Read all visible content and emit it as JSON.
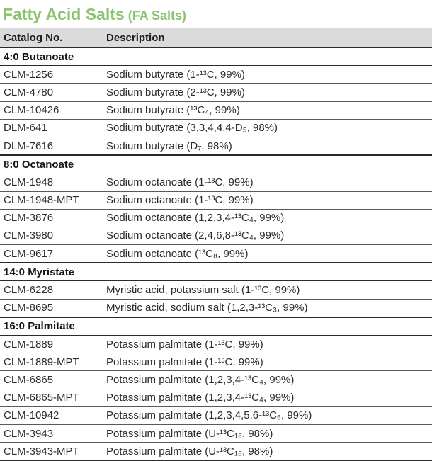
{
  "page": {
    "title": "Fatty Acid Salts",
    "subtitle": "(FA Salts)",
    "accent_color": "#8CC470",
    "header_bg": "#DBDBDB"
  },
  "table": {
    "headers": [
      "Catalog No.",
      "Description"
    ],
    "sections": [
      {
        "name": "4:0 Butanoate",
        "rows": [
          {
            "catalog": "CLM-1256",
            "description": "Sodium butyrate (1-¹³C, 99%)"
          },
          {
            "catalog": "CLM-4780",
            "description": "Sodium butyrate (2-¹³C, 99%)"
          },
          {
            "catalog": "CLM-10426",
            "description": "Sodium butyrate (¹³C₄, 99%)"
          },
          {
            "catalog": "DLM-641",
            "description": "Sodium butyrate (3,3,4,4,4-D₅, 98%)"
          },
          {
            "catalog": "DLM-7616",
            "description": "Sodium butyrate (D₇, 98%)"
          }
        ]
      },
      {
        "name": "8:0 Octanoate",
        "rows": [
          {
            "catalog": "CLM-1948",
            "description": "Sodium octanoate (1-¹³C, 99%)"
          },
          {
            "catalog": "CLM-1948-MPT",
            "description": "Sodium octanoate (1-¹³C, 99%)"
          },
          {
            "catalog": "CLM-3876",
            "description": "Sodium octanoate (1,2,3,4-¹³C₄, 99%)"
          },
          {
            "catalog": "CLM-3980",
            "description": "Sodium octanoate (2,4,6,8-¹³C₄, 99%)"
          },
          {
            "catalog": "CLM-9617",
            "description": "Sodium octanoate (¹³C₈, 99%)"
          }
        ]
      },
      {
        "name": "14:0 Myristate",
        "rows": [
          {
            "catalog": "CLM-6228",
            "description": "Myristic acid, potassium salt (1-¹³C, 99%)"
          },
          {
            "catalog": "CLM-8695",
            "description": "Myristic acid, sodium salt (1,2,3-¹³C₃, 99%)"
          }
        ]
      },
      {
        "name": "16:0 Palmitate",
        "rows": [
          {
            "catalog": "CLM-1889",
            "description": "Potassium palmitate (1-¹³C, 99%)"
          },
          {
            "catalog": "CLM-1889-MPT",
            "description": "Potassium palmitate (1-¹³C, 99%)"
          },
          {
            "catalog": "CLM-6865",
            "description": "Potassium palmitate (1,2,3,4-¹³C₄, 99%)"
          },
          {
            "catalog": "CLM-6865-MPT",
            "description": "Potassium palmitate (1,2,3,4-¹³C₄, 99%)"
          },
          {
            "catalog": "CLM-10942",
            "description": "Potassium palmitate (1,2,3,4,5,6-¹³C₆, 99%)"
          },
          {
            "catalog": "CLM-3943",
            "description": "Potassium palmitate (U-¹³C₁₆, 98%)"
          },
          {
            "catalog": "CLM-3943-MPT",
            "description": "Potassium palmitate (U-¹³C₁₆, 98%)"
          }
        ]
      }
    ]
  }
}
